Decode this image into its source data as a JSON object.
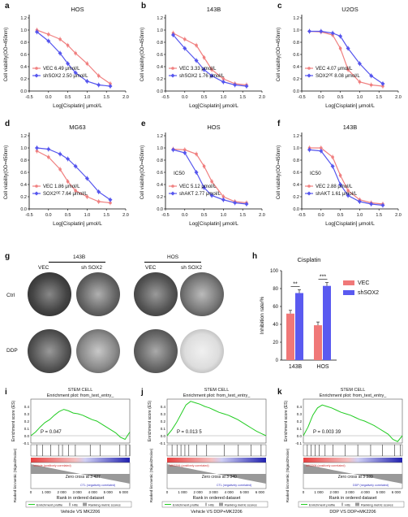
{
  "panels_abcdef": [
    {
      "letter": "a",
      "title": "HOS",
      "ylabel": "Cell viability(OD=450nm)",
      "xlabel": "Log[Cisplatin] μmol/L",
      "legend": [
        {
          "name": "VEC 6.49 μmol/L",
          "color": "#f08080"
        },
        {
          "name": "shSOX2 2.50 μmol/L",
          "color": "#5555ee"
        }
      ],
      "ic50": ""
    },
    {
      "letter": "b",
      "title": "143B",
      "ylabel": "Cell viability(OD=450nm)",
      "xlabel": "Log[Cisplatin] μmol/L",
      "legend": [
        {
          "name": "VEC 3.33 μmol/L",
          "color": "#f08080"
        },
        {
          "name": "shSOX2 1.76 μmol/L",
          "color": "#5555ee"
        }
      ],
      "ic50": ""
    },
    {
      "letter": "c",
      "title": "U2OS",
      "ylabel": "Cell viability(OD=450nm)",
      "xlabel": "Log[Cisplatin] μmol/L",
      "legend": [
        {
          "name": "VEC 4.07 μmol/L",
          "color": "#f08080"
        },
        {
          "name": "SOX2ᴼᴱ 8.08 μmol/L",
          "color": "#5555ee"
        }
      ],
      "ic50": ""
    },
    {
      "letter": "d",
      "title": "MG63",
      "ylabel": "Cell viability(OD=450nm)",
      "xlabel": "Log[Cisplatin] μmol/L",
      "legend": [
        {
          "name": "VEC 1.86 μmol/L",
          "color": "#f08080"
        },
        {
          "name": "SOX2ᴼᴱ 7.64 μmol/L",
          "color": "#5555ee"
        }
      ],
      "ic50": ""
    },
    {
      "letter": "e",
      "title": "HOS",
      "ylabel": "Cell viability(OD=450nm)",
      "xlabel": "Log[Cisplatin] μmol/L",
      "legend": [
        {
          "name": "VEC  5.12 μmol/L",
          "color": "#f08080"
        },
        {
          "name": "shAKT 2.77 μmol/L",
          "color": "#5555ee"
        }
      ],
      "ic50": "IC50"
    },
    {
      "letter": "f",
      "title": "143B",
      "ylabel": "Cell viability(OD=450nm)",
      "xlabel": "Log[Cisplatin] μmol/L",
      "legend": [
        {
          "name": "VEC  2.88 μmol/L",
          "color": "#f08080"
        },
        {
          "name": "shAKT 1.61 μmol/L",
          "color": "#5555ee"
        }
      ],
      "ic50": "IC50"
    }
  ],
  "panel_g": {
    "letter": "g",
    "group1": "143B",
    "group2": "HOS",
    "cols": [
      "VEC",
      "sh SOX2",
      "VEC",
      "sh SOX2"
    ],
    "rows": [
      "Ctrl",
      "DDP"
    ]
  },
  "panel_h": {
    "letter": "h"
  },
  "gsea": [
    {
      "letter": "i",
      "title1": "STEM CELL",
      "title2": "Enrichment plot: from_text_entry_",
      "p": "P = 0.047",
      "zero": "Zero cross at 3 427",
      "pos": "Vehicle (positively correlated)",
      "neg": "CTL (negatively correlated)",
      "caption": "Vehicle VS MK2206"
    },
    {
      "letter": "j",
      "title1": "STEM CELL",
      "title2": "Enrichment plot: from_text_entry_",
      "p": "P = 0.013 5",
      "zero": "Zero cross at 3 340",
      "pos": "MK2206 (positively correlated)",
      "neg": "CTL (negatively correlated)",
      "caption": "Vehicle VS DDP+MK2206"
    },
    {
      "letter": "k",
      "title1": "STEM CELL",
      "title2": "Enrichment plot: from_text_entry_",
      "p": "P = 0.003 39",
      "zero": "Zero cross at 3 339",
      "pos": "MK2206 (positively correlated)",
      "neg": "DDP (negatively correlated)",
      "caption": "DDP VS DDP+MK2206"
    }
  ],
  "gsea_common": {
    "ylabel_top": "Enrichment score (ES)",
    "ylabel_bottom": "Ranked list metric (Signal2Noise)",
    "xlabel": "Rank in ordered dataset",
    "legend": [
      "Enrichment profile",
      "Hits",
      "Ranking metric scores"
    ],
    "xticks": [
      "0",
      "1 000",
      "2 000",
      "3 000",
      "4 000",
      "5 000",
      "6 000"
    ]
  },
  "chart_data": [
    {
      "type": "line",
      "panel": "a",
      "title": "HOS",
      "xlabel": "Log[Cisplatin] μmol/L",
      "ylabel": "Cell viability(OD=450nm)",
      "xlim": [
        -0.5,
        2.0
      ],
      "ylim": [
        0,
        1.2
      ],
      "x": [
        -0.3,
        0,
        0.3,
        0.5,
        0.7,
        1.0,
        1.3,
        1.6
      ],
      "series": [
        {
          "name": "VEC 6.49 μmol/L",
          "values": [
            1.0,
            0.93,
            0.85,
            0.75,
            0.62,
            0.45,
            0.25,
            0.12
          ]
        },
        {
          "name": "shSOX2 2.50 μmol/L",
          "values": [
            0.97,
            0.82,
            0.62,
            0.45,
            0.3,
            0.16,
            0.1,
            0.08
          ]
        }
      ]
    },
    {
      "type": "line",
      "panel": "b",
      "title": "143B",
      "xlabel": "Log[Cisplatin] μmol/L",
      "ylabel": "Cell viability(OD=450nm)",
      "xlim": [
        -0.5,
        2.0
      ],
      "ylim": [
        0,
        1.2
      ],
      "x": [
        -0.3,
        0,
        0.3,
        0.5,
        0.7,
        1.0,
        1.3,
        1.6
      ],
      "series": [
        {
          "name": "VEC 3.33 μmol/L",
          "values": [
            0.95,
            0.85,
            0.75,
            0.55,
            0.35,
            0.2,
            0.12,
            0.1
          ]
        },
        {
          "name": "shSOX2 1.76 μmol/L",
          "values": [
            0.92,
            0.7,
            0.5,
            0.35,
            0.25,
            0.15,
            0.1,
            0.08
          ]
        }
      ]
    },
    {
      "type": "line",
      "panel": "c",
      "title": "U2OS",
      "xlabel": "Log[Cisplatin] μmol/L",
      "ylabel": "Cell viability(OD=450nm)",
      "xlim": [
        -0.5,
        2.0
      ],
      "ylim": [
        0,
        1.2
      ],
      "x": [
        -0.3,
        0,
        0.3,
        0.5,
        0.7,
        1.0,
        1.3,
        1.6
      ],
      "series": [
        {
          "name": "VEC 4.07 μmol/L",
          "values": [
            0.98,
            0.97,
            0.92,
            0.7,
            0.35,
            0.15,
            0.1,
            0.08
          ]
        },
        {
          "name": "SOX2ᴼᴱ 8.08 μmol/L",
          "values": [
            0.98,
            0.98,
            0.95,
            0.9,
            0.7,
            0.45,
            0.25,
            0.12
          ]
        }
      ]
    },
    {
      "type": "line",
      "panel": "d",
      "title": "MG63",
      "xlabel": "Log[Cisplatin] μmol/L",
      "ylabel": "Cell viability(OD=450nm)",
      "xlim": [
        -0.5,
        2.0
      ],
      "ylim": [
        0,
        1.2
      ],
      "x": [
        -0.3,
        0,
        0.3,
        0.5,
        0.7,
        1.0,
        1.3,
        1.6
      ],
      "series": [
        {
          "name": "VEC 1.86 μmol/L",
          "values": [
            0.95,
            0.85,
            0.65,
            0.45,
            0.3,
            0.2,
            0.12,
            0.1
          ]
        },
        {
          "name": "SOX2ᴼᴱ 7.64 μmol/L",
          "values": [
            1.0,
            0.98,
            0.9,
            0.82,
            0.7,
            0.5,
            0.28,
            0.15
          ]
        }
      ]
    },
    {
      "type": "line",
      "panel": "e",
      "title": "HOS",
      "xlabel": "Log[Cisplatin] μmol/L",
      "ylabel": "Cell viability(OD=450nm)",
      "xlim": [
        -0.5,
        2.0
      ],
      "ylim": [
        0,
        1.2
      ],
      "x": [
        -0.3,
        0,
        0.3,
        0.5,
        0.7,
        1.0,
        1.3,
        1.6
      ],
      "series": [
        {
          "name": "VEC  5.12 μmol/L",
          "values": [
            0.98,
            0.97,
            0.9,
            0.7,
            0.45,
            0.2,
            0.12,
            0.1
          ]
        },
        {
          "name": "shAKT 2.77 μmol/L",
          "values": [
            0.97,
            0.92,
            0.6,
            0.35,
            0.22,
            0.15,
            0.1,
            0.08
          ]
        }
      ]
    },
    {
      "type": "line",
      "panel": "f",
      "title": "143B",
      "xlabel": "Log[Cisplatin] μmol/L",
      "ylabel": "Cell viability(OD=450nm)",
      "xlim": [
        -0.5,
        2.0
      ],
      "ylim": [
        0,
        1.2
      ],
      "x": [
        -0.3,
        0,
        0.3,
        0.5,
        0.7,
        1.0,
        1.3,
        1.6
      ],
      "series": [
        {
          "name": "VEC  2.88 μmol/L",
          "values": [
            1.0,
            1.0,
            0.85,
            0.55,
            0.3,
            0.15,
            0.1,
            0.08
          ]
        },
        {
          "name": "shAKT 1.61 μmol/L",
          "values": [
            0.97,
            0.95,
            0.7,
            0.4,
            0.22,
            0.12,
            0.08,
            0.06
          ]
        }
      ]
    },
    {
      "type": "bar",
      "panel": "h",
      "title": "Cisplatin",
      "ylabel": "Inhibition rate/%",
      "ylim": [
        0,
        100
      ],
      "categories": [
        "143B",
        "HOS"
      ],
      "series": [
        {
          "name": "VEC",
          "values": [
            52,
            39
          ],
          "color": "#f07878"
        },
        {
          "name": "shSOX2",
          "values": [
            75,
            83
          ],
          "color": "#5a5af0"
        }
      ],
      "annotations": [
        "**",
        "***"
      ],
      "yticks": [
        "0",
        "20",
        "40",
        "60",
        "80",
        "100"
      ]
    }
  ]
}
